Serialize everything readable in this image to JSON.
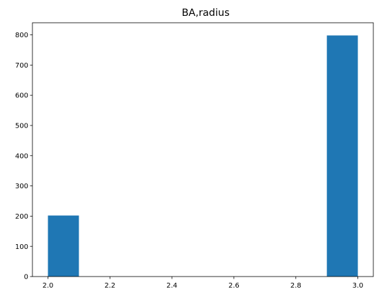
{
  "chart_data": {
    "type": "bar",
    "title": "BA,radius",
    "xlabel": "",
    "ylabel": "",
    "xlim": [
      1.95,
      3.05
    ],
    "ylim": [
      0,
      840
    ],
    "x_ticks": [
      2.0,
      2.2,
      2.4,
      2.6,
      2.8,
      3.0
    ],
    "x_tick_labels": [
      "2.0",
      "2.2",
      "2.4",
      "2.6",
      "2.8",
      "3.0"
    ],
    "y_ticks": [
      0,
      100,
      200,
      300,
      400,
      500,
      600,
      700,
      800
    ],
    "y_tick_labels": [
      "0",
      "100",
      "200",
      "300",
      "400",
      "500",
      "600",
      "700",
      "800"
    ],
    "bins": [
      {
        "start": 2.0,
        "end": 2.1,
        "value": 202
      },
      {
        "start": 2.1,
        "end": 2.2,
        "value": 0
      },
      {
        "start": 2.2,
        "end": 2.3,
        "value": 0
      },
      {
        "start": 2.3,
        "end": 2.4,
        "value": 0
      },
      {
        "start": 2.4,
        "end": 2.5,
        "value": 0
      },
      {
        "start": 2.5,
        "end": 2.6,
        "value": 0
      },
      {
        "start": 2.6,
        "end": 2.7,
        "value": 0
      },
      {
        "start": 2.7,
        "end": 2.8,
        "value": 0
      },
      {
        "start": 2.8,
        "end": 2.9,
        "value": 0
      },
      {
        "start": 2.9,
        "end": 3.0,
        "value": 798
      }
    ],
    "grid": false,
    "bar_color": "#1f77b4"
  }
}
